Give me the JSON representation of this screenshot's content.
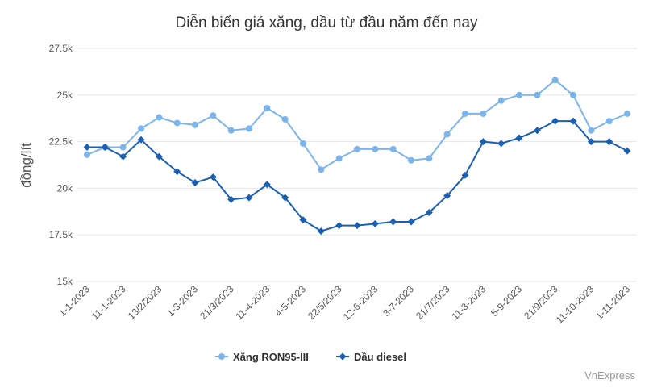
{
  "chart_data": {
    "type": "line",
    "title": "Diễn biến giá xăng, dầu từ đầu năm đến nay",
    "y_label": "đồng/lít",
    "source": "VnExpress",
    "categories": [
      "1-1-2023",
      null,
      "11-1-2023",
      null,
      "13/2/2023",
      null,
      "1-3-2023",
      null,
      "21/3/2023",
      null,
      "11-4-2023",
      null,
      "4-5-2023",
      null,
      "22/5/2023",
      null,
      "12-6-2023",
      null,
      "3-7-2023",
      null,
      "21/7/2023",
      null,
      "11-8-2023",
      null,
      "5-9-2023",
      null,
      "21/9/2023",
      null,
      "11-10-2023",
      null,
      "1-11-2023"
    ],
    "series": [
      {
        "name": "Xăng RON95-III",
        "color": "#7cb5ec",
        "marker": "circle",
        "values": [
          21800,
          22200,
          22200,
          23200,
          23800,
          23500,
          23400,
          23900,
          23100,
          23200,
          24300,
          23700,
          22400,
          21000,
          21600,
          22100,
          22100,
          22100,
          21500,
          21600,
          22900,
          24000,
          24000,
          24700,
          25000,
          25000,
          25800,
          25000,
          23100,
          23600,
          24000
        ]
      },
      {
        "name": "Dầu diesel",
        "color": "#1a5fb4",
        "marker": "diamond",
        "values": [
          22200,
          22200,
          21700,
          22600,
          21700,
          20900,
          20300,
          20600,
          19400,
          19500,
          20200,
          19500,
          18300,
          17700,
          18000,
          18000,
          18100,
          18200,
          18200,
          18700,
          19600,
          20700,
          22500,
          22400,
          22700,
          23100,
          23600,
          23600,
          22500,
          22500,
          22000
        ]
      }
    ],
    "ylim": [
      15000,
      27500
    ],
    "yticks": [
      {
        "value": 15000,
        "label": "15k"
      },
      {
        "value": 17500,
        "label": "17.5k"
      },
      {
        "value": 20000,
        "label": "20k"
      },
      {
        "value": 22500,
        "label": "22.5k"
      },
      {
        "value": 25000,
        "label": "25k"
      },
      {
        "value": 27500,
        "label": "27.5k"
      }
    ],
    "grid": true,
    "legend": "bottom"
  }
}
